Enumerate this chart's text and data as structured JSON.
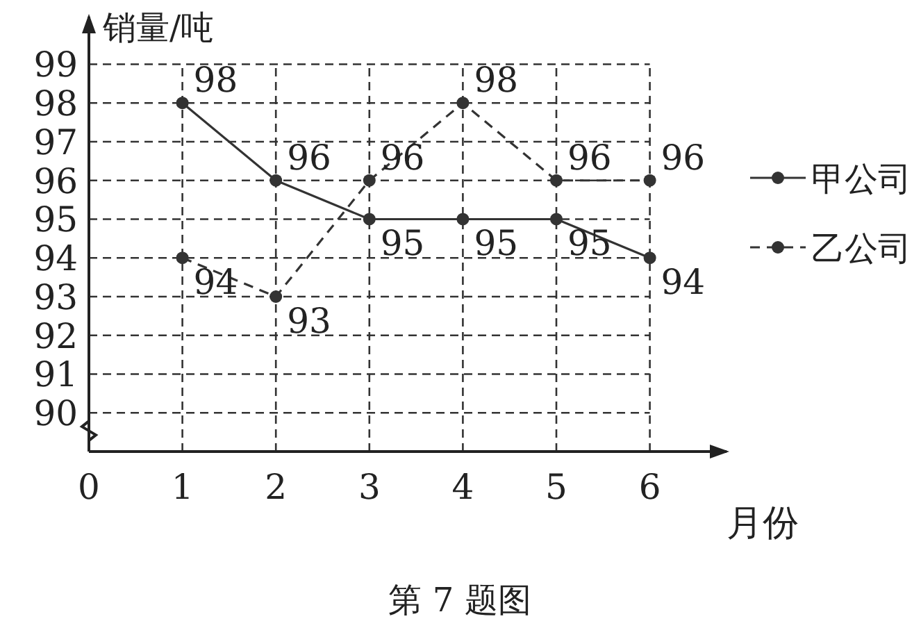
{
  "chart_data": {
    "type": "line",
    "xlabel": "月份",
    "ylabel": "销量/吨",
    "x": [
      1,
      2,
      3,
      4,
      5,
      6
    ],
    "series": [
      {
        "name": "甲公司",
        "color": "#333333",
        "line_style": "solid",
        "values": [
          98,
          96,
          95,
          95,
          95,
          94
        ]
      },
      {
        "name": "乙公司",
        "color": "#333333",
        "line_style": "dashed",
        "values": [
          94,
          93,
          96,
          98,
          96,
          96
        ]
      }
    ],
    "xlim": [
      0,
      6.85
    ],
    "ylim": [
      89,
      100.3
    ],
    "xticks": [
      0,
      1,
      2,
      3,
      4,
      5,
      6
    ],
    "yticks": [
      90,
      91,
      92,
      93,
      94,
      95,
      96,
      97,
      98,
      99
    ],
    "grid": true,
    "marker": "circle",
    "data_labels": true,
    "legend": "right",
    "annotations": [
      "第 7 题图"
    ]
  }
}
